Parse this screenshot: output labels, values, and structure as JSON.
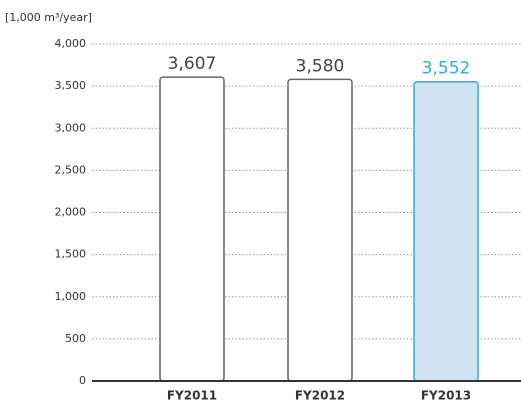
{
  "chart_data": {
    "type": "bar",
    "y_label": "[1,000 m³/year]",
    "categories": [
      "FY2011",
      "FY2012",
      "FY2013"
    ],
    "values": [
      3607,
      3580,
      3552
    ],
    "value_labels": [
      "3,607",
      "3,580",
      "3,552"
    ],
    "colors": [
      "#ffffff",
      "#ffffff",
      "#cfe2f1"
    ],
    "edge_colors": [
      "#666666",
      "#666666",
      "#3aa9d4"
    ],
    "ylim": [
      0,
      4000
    ],
    "yticks": [
      0,
      500,
      {
        "value": 1000,
        "label": "1,000"
      },
      {
        "value": 1500,
        "label": "1,500"
      },
      {
        "value": 2000,
        "label": "2,000"
      },
      {
        "value": 2500,
        "label": "2,500"
      },
      {
        "value": 3000,
        "label": "3,000"
      },
      {
        "value": 3500,
        "label": "3,500"
      },
      {
        "value": 4000,
        "label": "4,000"
      }
    ],
    "grid": true
  }
}
